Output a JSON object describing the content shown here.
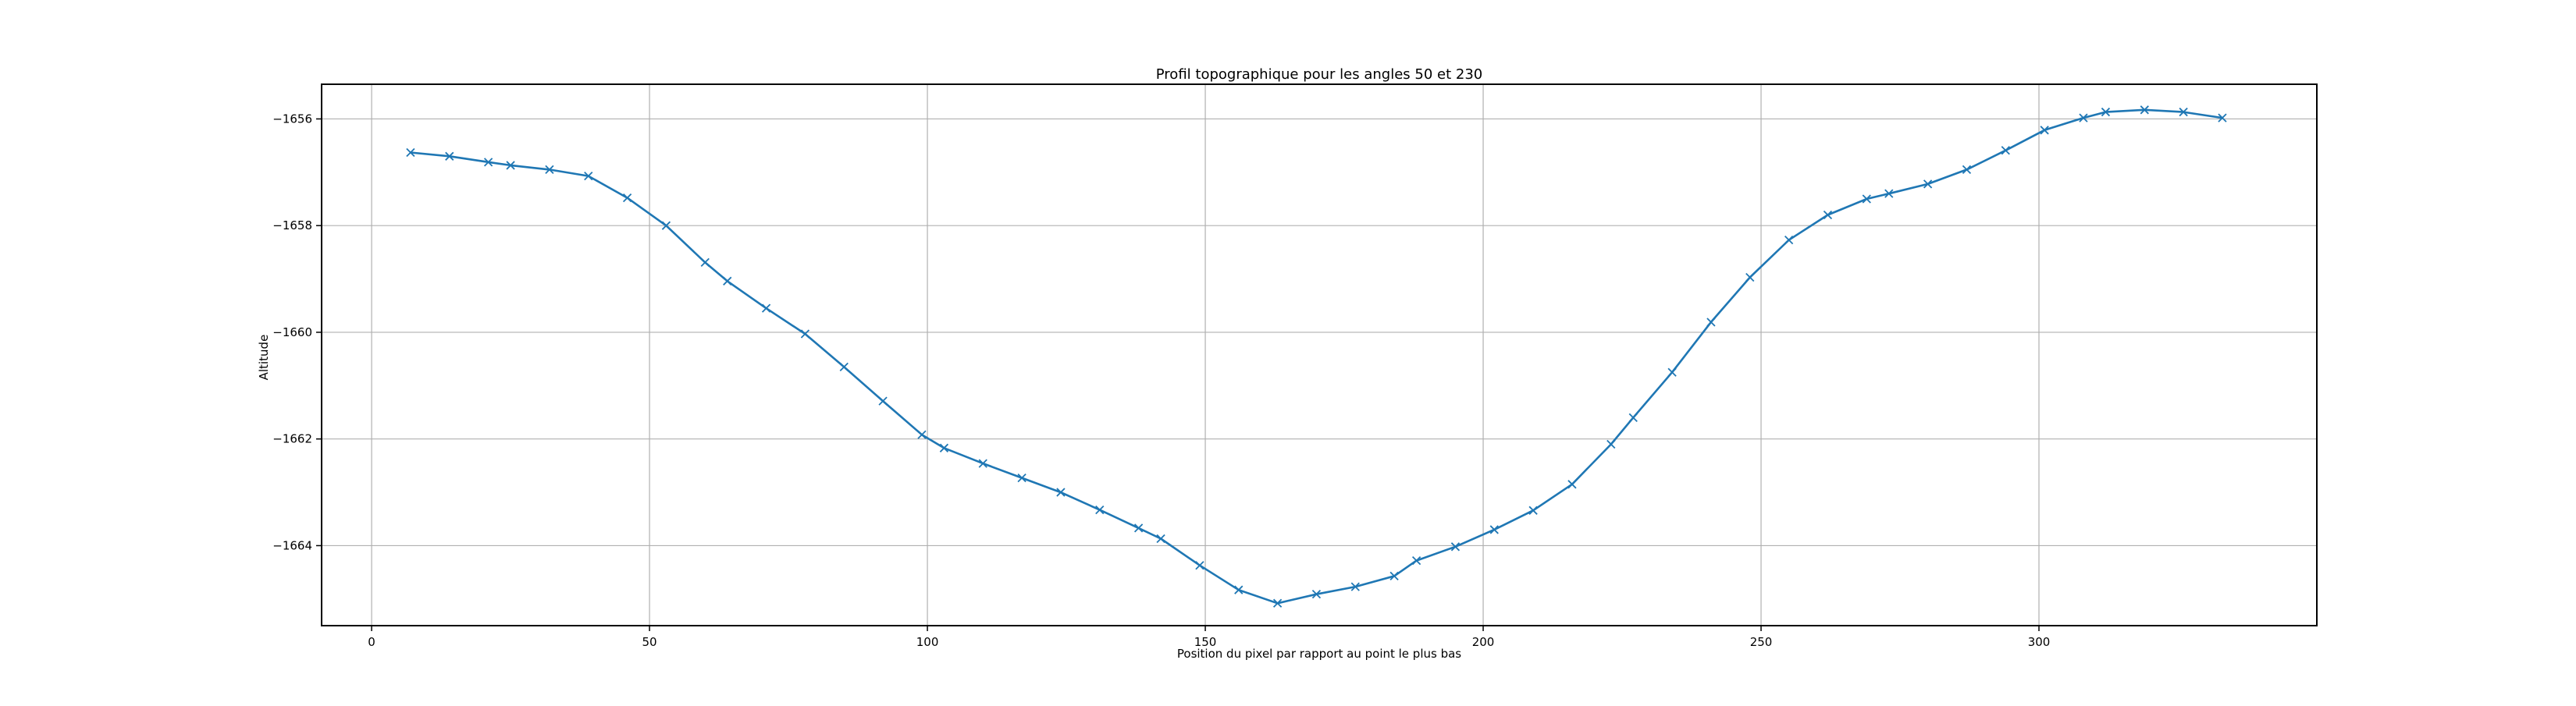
{
  "chart_data": {
    "type": "line",
    "title": "Profil topographique pour les angles 50 et 230",
    "xlabel": "Position du pixel par rapport au point le plus bas",
    "ylabel": "Altitude",
    "xlim": [
      -9,
      350
    ],
    "ylim": [
      -1665.5,
      -1655.35
    ],
    "xticks": [
      0,
      50,
      100,
      150,
      200,
      250,
      300
    ],
    "yticks": [
      -1656,
      -1658,
      -1660,
      -1662,
      -1664
    ],
    "xtick_labels": [
      "0",
      "50",
      "100",
      "150",
      "200",
      "250",
      "300"
    ],
    "ytick_labels": [
      "−1656",
      "−1658",
      "−1660",
      "−1662",
      "−1664"
    ],
    "grid": true,
    "marker": "x",
    "series_color": "#1f77b4",
    "x": [
      7,
      14,
      21,
      25,
      32,
      39,
      46,
      53,
      60,
      64,
      71,
      78,
      85,
      92,
      99,
      103,
      110,
      117,
      124,
      131,
      138,
      142,
      149,
      156,
      163,
      170,
      177,
      184,
      188,
      195,
      202,
      209,
      216,
      223,
      227,
      234,
      241,
      248,
      255,
      262,
      269,
      273,
      280,
      287,
      294,
      301,
      308,
      312,
      319,
      326,
      333
    ],
    "y": [
      -1656.63,
      -1656.7,
      -1656.81,
      -1656.87,
      -1656.95,
      -1657.07,
      -1657.48,
      -1658.0,
      -1658.69,
      -1659.04,
      -1659.55,
      -1660.03,
      -1660.65,
      -1661.29,
      -1661.92,
      -1662.17,
      -1662.46,
      -1662.73,
      -1663.0,
      -1663.33,
      -1663.67,
      -1663.87,
      -1664.37,
      -1664.83,
      -1665.08,
      -1664.91,
      -1664.77,
      -1664.57,
      -1664.28,
      -1664.02,
      -1663.7,
      -1663.34,
      -1662.85,
      -1662.1,
      -1661.6,
      -1660.75,
      -1659.81,
      -1658.97,
      -1658.27,
      -1657.8,
      -1657.5,
      -1657.4,
      -1657.22,
      -1656.95,
      -1656.59,
      -1656.21,
      -1655.98,
      -1655.87,
      -1655.83,
      -1655.87,
      -1655.98
    ]
  }
}
